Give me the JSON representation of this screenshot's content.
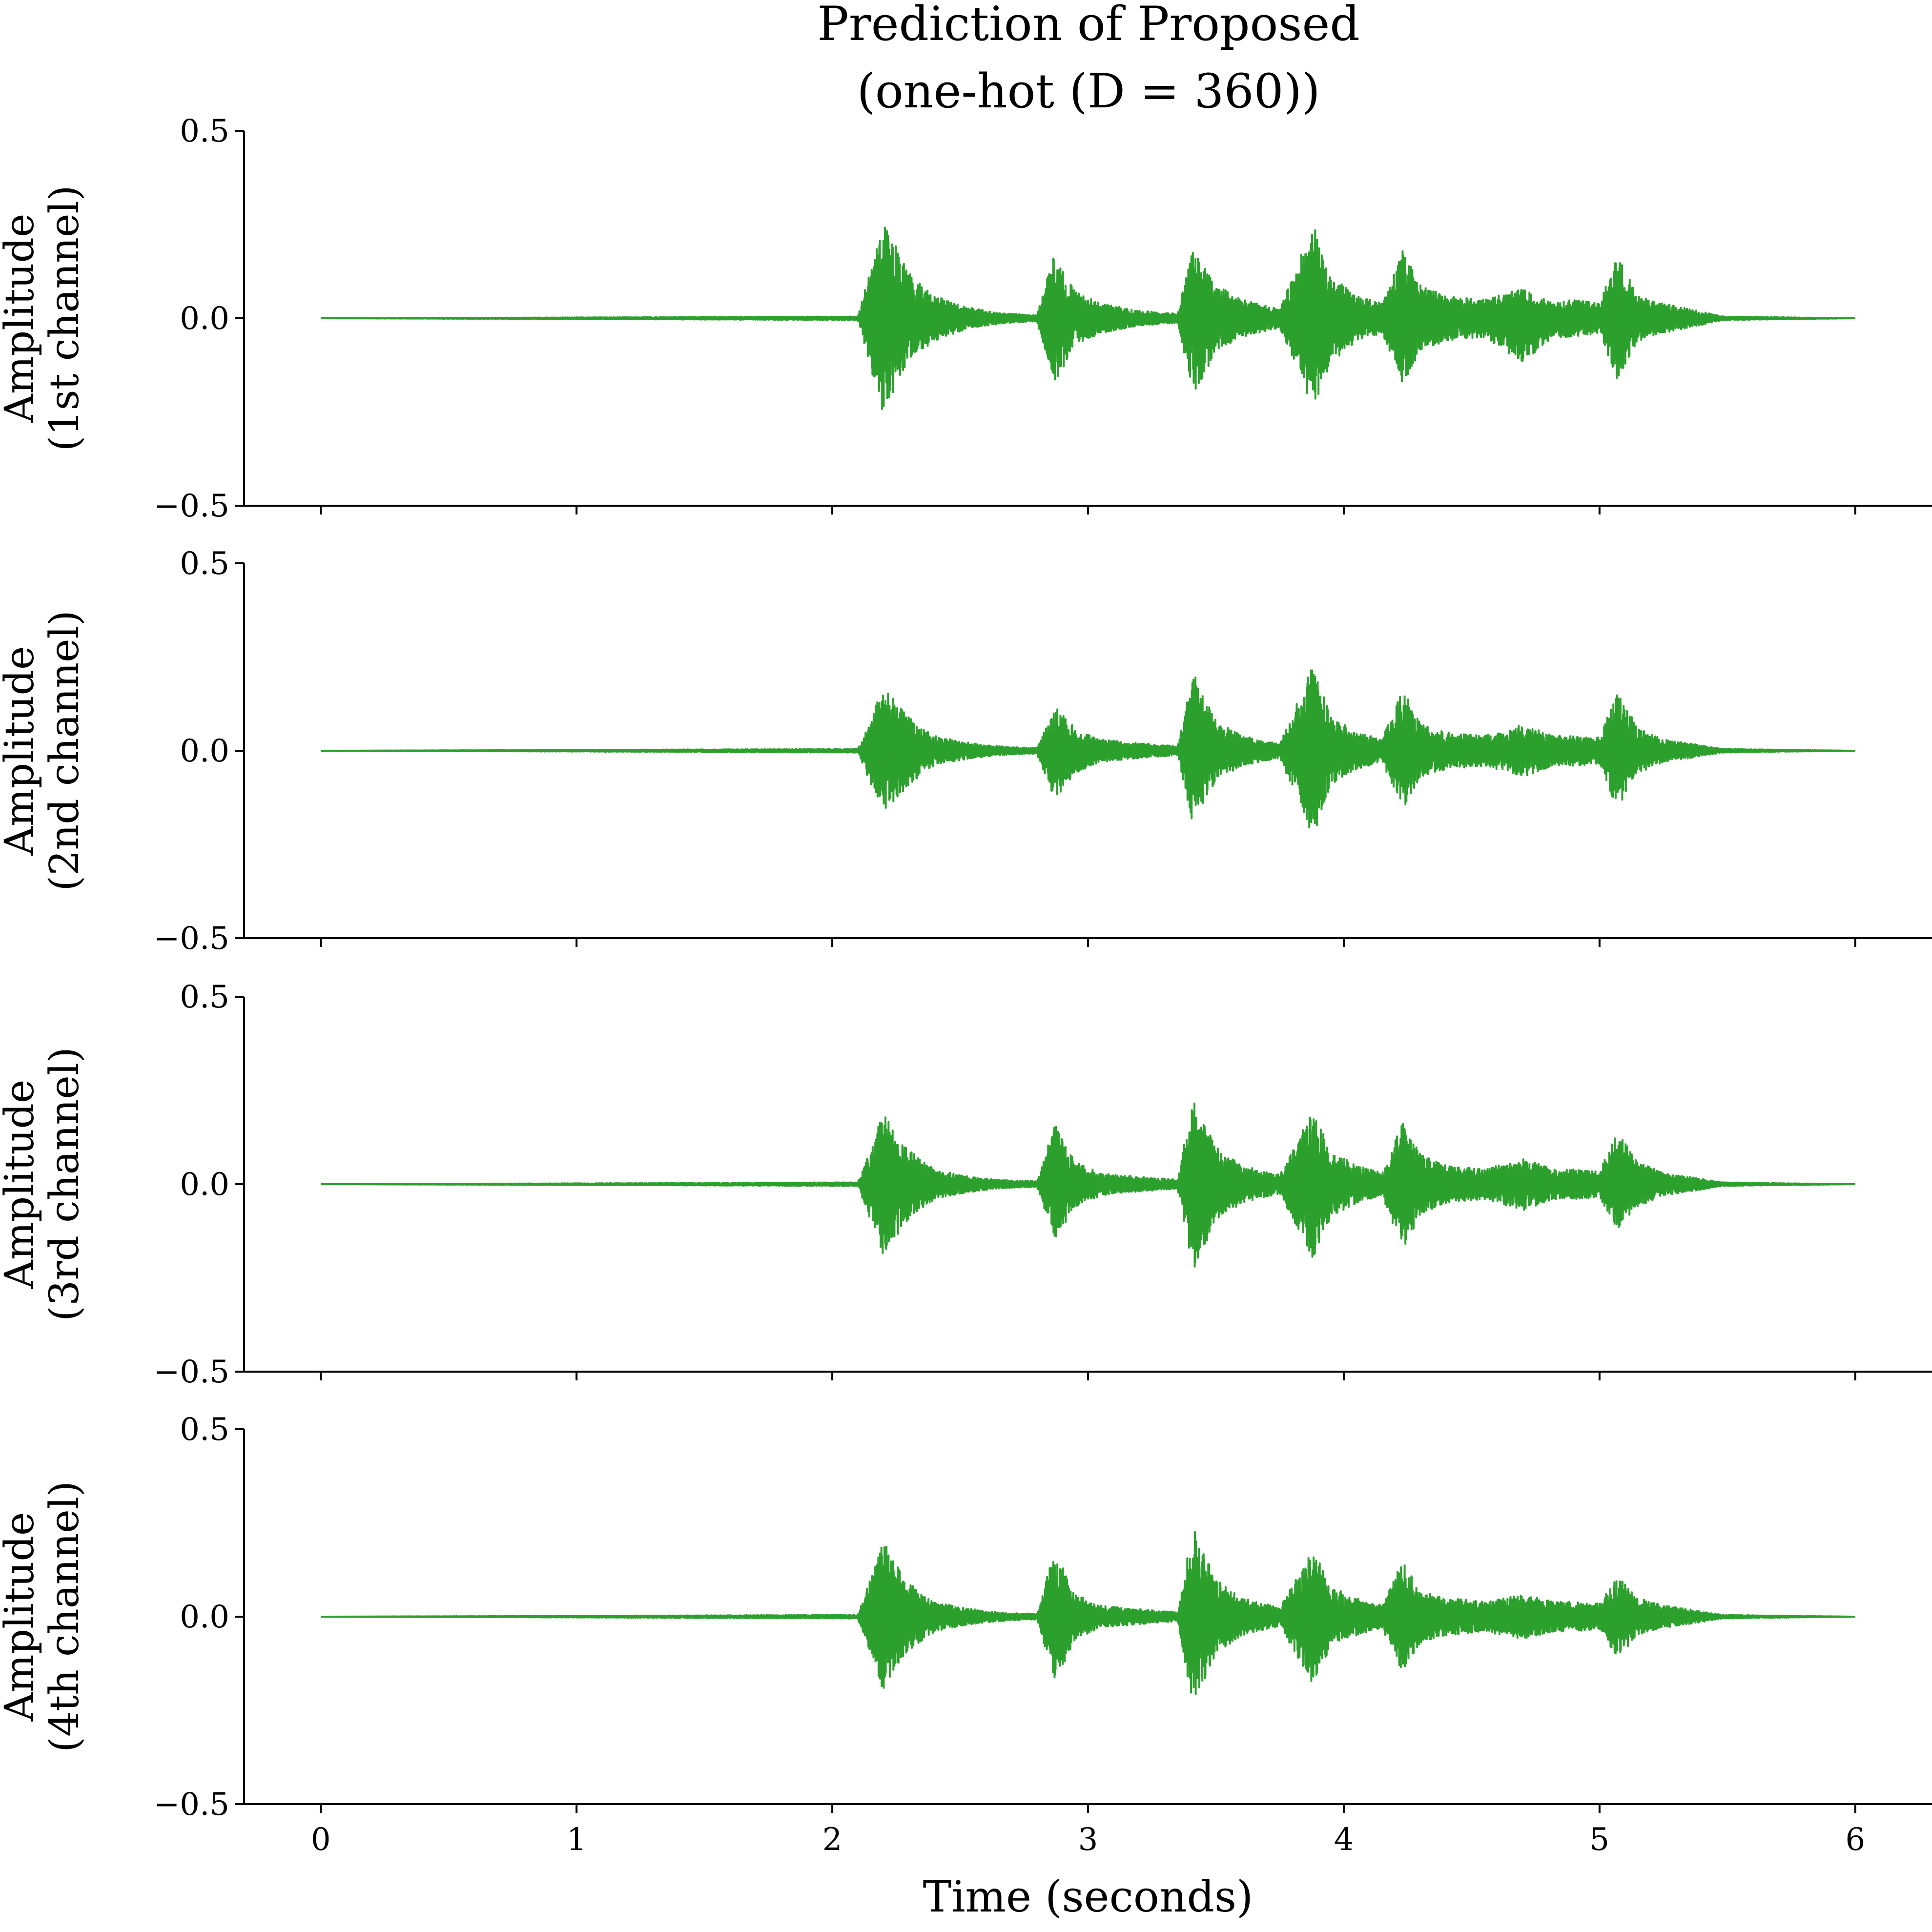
{
  "figure": {
    "title_line1": "Prediction of Proposed",
    "title_line2": "(one-hot (D = 360))"
  },
  "chart_data": [
    {
      "type": "line",
      "ylabel_line1": "Amplitude",
      "ylabel_line2": "(1st channel)",
      "xlim": [
        -0.3,
        6.3
      ],
      "ylim": [
        -0.5,
        0.5
      ],
      "yticks": [
        -0.5,
        0.0,
        0.5
      ],
      "ytick_labels": [
        "−0.5",
        "0.0",
        "0.5"
      ],
      "xticks": [
        0,
        1,
        2,
        3,
        4,
        5,
        6
      ],
      "xtick_labels": [],
      "xlabel": "",
      "color": "#2ca02c",
      "series": [
        {
          "x": [
            0,
            2.1,
            2.2,
            2.3,
            2.4,
            2.5,
            2.6,
            2.7,
            2.8,
            2.87,
            2.95,
            3.05,
            3.2,
            3.35,
            3.41,
            3.5,
            3.6,
            3.75,
            3.88,
            3.95,
            4.05,
            4.15,
            4.23,
            4.3,
            4.4,
            4.55,
            4.7,
            4.82,
            4.9,
            5.0,
            5.07,
            5.15,
            5.25,
            5.35,
            5.48,
            6
          ],
          "y_upper": [
            0,
            0.005,
            0.26,
            0.12,
            0.06,
            0.035,
            0.02,
            0.012,
            0.008,
            0.18,
            0.07,
            0.04,
            0.02,
            0.012,
            0.19,
            0.09,
            0.05,
            0.025,
            0.25,
            0.12,
            0.06,
            0.04,
            0.18,
            0.09,
            0.06,
            0.05,
            0.08,
            0.04,
            0.05,
            0.04,
            0.17,
            0.06,
            0.04,
            0.025,
            0.005,
            0
          ],
          "y_lower": [
            0,
            -0.005,
            -0.26,
            -0.11,
            -0.06,
            -0.035,
            -0.02,
            -0.012,
            -0.008,
            -0.18,
            -0.07,
            -0.04,
            -0.02,
            -0.012,
            -0.21,
            -0.09,
            -0.05,
            -0.025,
            -0.24,
            -0.12,
            -0.06,
            -0.04,
            -0.18,
            -0.09,
            -0.06,
            -0.05,
            -0.12,
            -0.05,
            -0.05,
            -0.04,
            -0.17,
            -0.06,
            -0.04,
            -0.025,
            -0.005,
            0
          ]
        }
      ]
    },
    {
      "type": "line",
      "ylabel_line1": "Amplitude",
      "ylabel_line2": "(2nd channel)",
      "xlim": [
        -0.3,
        6.3
      ],
      "ylim": [
        -0.5,
        0.5
      ],
      "yticks": [
        -0.5,
        0.0,
        0.5
      ],
      "ytick_labels": [
        "−0.5",
        "0.0",
        "0.5"
      ],
      "xticks": [
        0,
        1,
        2,
        3,
        4,
        5,
        6
      ],
      "xtick_labels": [],
      "xlabel": "",
      "color": "#2ca02c",
      "series": [
        {
          "x": [
            0,
            2.1,
            2.2,
            2.3,
            2.4,
            2.5,
            2.6,
            2.7,
            2.8,
            2.87,
            2.95,
            3.05,
            3.2,
            3.35,
            3.41,
            3.5,
            3.6,
            3.75,
            3.88,
            3.95,
            4.05,
            4.15,
            4.23,
            4.3,
            4.4,
            4.55,
            4.7,
            4.82,
            4.9,
            5.0,
            5.07,
            5.15,
            5.25,
            5.35,
            5.48,
            6
          ],
          "y_upper": [
            0,
            0.005,
            0.17,
            0.09,
            0.04,
            0.025,
            0.015,
            0.01,
            0.008,
            0.12,
            0.06,
            0.03,
            0.02,
            0.012,
            0.21,
            0.08,
            0.04,
            0.02,
            0.23,
            0.09,
            0.05,
            0.03,
            0.17,
            0.07,
            0.05,
            0.04,
            0.07,
            0.04,
            0.04,
            0.035,
            0.16,
            0.06,
            0.03,
            0.02,
            0.005,
            0
          ],
          "y_lower": [
            0,
            -0.005,
            -0.17,
            -0.09,
            -0.04,
            -0.025,
            -0.015,
            -0.01,
            -0.008,
            -0.13,
            -0.06,
            -0.03,
            -0.02,
            -0.012,
            -0.2,
            -0.08,
            -0.04,
            -0.02,
            -0.23,
            -0.09,
            -0.05,
            -0.03,
            -0.16,
            -0.07,
            -0.05,
            -0.04,
            -0.07,
            -0.04,
            -0.04,
            -0.035,
            -0.16,
            -0.06,
            -0.03,
            -0.02,
            -0.005,
            0
          ]
        }
      ]
    },
    {
      "type": "line",
      "ylabel_line1": "Amplitude",
      "ylabel_line2": "(3rd channel)",
      "xlim": [
        -0.3,
        6.3
      ],
      "ylim": [
        -0.5,
        0.5
      ],
      "yticks": [
        -0.5,
        0.0,
        0.5
      ],
      "ytick_labels": [
        "−0.5",
        "0.0",
        "0.5"
      ],
      "xticks": [
        0,
        1,
        2,
        3,
        4,
        5,
        6
      ],
      "xtick_labels": [],
      "xlabel": "",
      "color": "#2ca02c",
      "series": [
        {
          "x": [
            0,
            2.1,
            2.2,
            2.3,
            2.4,
            2.5,
            2.6,
            2.7,
            2.8,
            2.87,
            2.95,
            3.05,
            3.2,
            3.35,
            3.41,
            3.5,
            3.6,
            3.75,
            3.88,
            3.95,
            4.05,
            4.15,
            4.23,
            4.3,
            4.4,
            4.55,
            4.7,
            4.82,
            4.9,
            5.0,
            5.07,
            5.15,
            5.25,
            5.35,
            5.48,
            6
          ],
          "y_upper": [
            0,
            0.005,
            0.19,
            0.09,
            0.04,
            0.025,
            0.015,
            0.01,
            0.008,
            0.16,
            0.06,
            0.03,
            0.02,
            0.012,
            0.23,
            0.1,
            0.05,
            0.025,
            0.2,
            0.09,
            0.05,
            0.03,
            0.17,
            0.08,
            0.05,
            0.04,
            0.07,
            0.04,
            0.04,
            0.035,
            0.14,
            0.06,
            0.03,
            0.02,
            0.005,
            0
          ],
          "y_lower": [
            0,
            -0.005,
            -0.19,
            -0.09,
            -0.04,
            -0.025,
            -0.015,
            -0.01,
            -0.008,
            -0.15,
            -0.06,
            -0.03,
            -0.02,
            -0.012,
            -0.23,
            -0.1,
            -0.05,
            -0.025,
            -0.2,
            -0.09,
            -0.05,
            -0.03,
            -0.18,
            -0.08,
            -0.05,
            -0.04,
            -0.07,
            -0.04,
            -0.04,
            -0.035,
            -0.12,
            -0.06,
            -0.03,
            -0.02,
            -0.005,
            0
          ]
        }
      ]
    },
    {
      "type": "line",
      "ylabel_line1": "Amplitude",
      "ylabel_line2": "(4th channel)",
      "xlim": [
        -0.3,
        6.3
      ],
      "ylim": [
        -0.5,
        0.5
      ],
      "yticks": [
        -0.5,
        0.0,
        0.5
      ],
      "ytick_labels": [
        "−0.5",
        "0.0",
        "0.5"
      ],
      "xticks": [
        0,
        1,
        2,
        3,
        4,
        5,
        6
      ],
      "xtick_labels": [
        "0",
        "1",
        "2",
        "3",
        "4",
        "5",
        "6"
      ],
      "xlabel": "Time (seconds)",
      "color": "#2ca02c",
      "series": [
        {
          "x": [
            0,
            2.1,
            2.2,
            2.3,
            2.4,
            2.5,
            2.6,
            2.7,
            2.8,
            2.87,
            2.95,
            3.05,
            3.2,
            3.35,
            3.41,
            3.5,
            3.6,
            3.75,
            3.88,
            3.95,
            4.05,
            4.15,
            4.23,
            4.3,
            4.4,
            4.55,
            4.7,
            4.82,
            4.9,
            5.0,
            5.07,
            5.15,
            5.25,
            5.35,
            5.48,
            6
          ],
          "y_upper": [
            0,
            0.005,
            0.2,
            0.09,
            0.04,
            0.025,
            0.015,
            0.01,
            0.008,
            0.18,
            0.06,
            0.03,
            0.02,
            0.012,
            0.24,
            0.1,
            0.05,
            0.025,
            0.18,
            0.08,
            0.05,
            0.03,
            0.15,
            0.07,
            0.05,
            0.04,
            0.06,
            0.04,
            0.04,
            0.035,
            0.11,
            0.05,
            0.03,
            0.02,
            0.005,
            0
          ],
          "y_lower": [
            0,
            -0.005,
            -0.2,
            -0.09,
            -0.04,
            -0.025,
            -0.015,
            -0.01,
            -0.008,
            -0.18,
            -0.06,
            -0.03,
            -0.02,
            -0.012,
            -0.24,
            -0.1,
            -0.05,
            -0.025,
            -0.18,
            -0.08,
            -0.05,
            -0.03,
            -0.15,
            -0.07,
            -0.05,
            -0.04,
            -0.06,
            -0.04,
            -0.04,
            -0.035,
            -0.11,
            -0.05,
            -0.03,
            -0.02,
            -0.005,
            0
          ]
        }
      ]
    }
  ]
}
